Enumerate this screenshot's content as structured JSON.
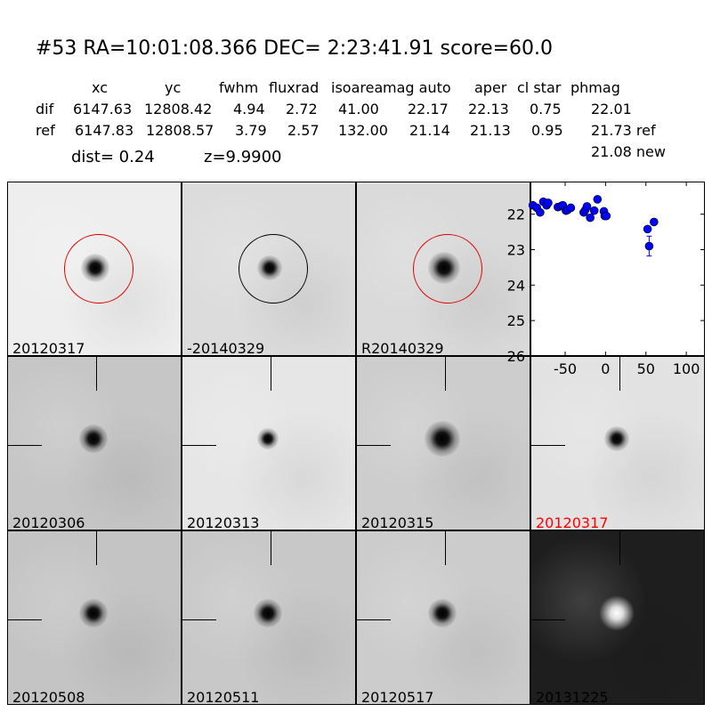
{
  "title": "#53   RA=10:01:08.366 DEC= 2:23:41.91      score=60.0",
  "columns": [
    "xc",
    "yc",
    "fwhm",
    "fluxrad",
    "isoarea",
    "mag auto",
    "aper",
    "cl star",
    "phmag"
  ],
  "rows": [
    {
      "label": "dif",
      "values": [
        "6147.63",
        "12808.42",
        "4.94",
        "2.72",
        "41.00",
        "22.17",
        "22.13",
        "0.75",
        "22.01"
      ]
    },
    {
      "label": "ref",
      "values": [
        "6147.83",
        "12808.57",
        "3.79",
        "2.57",
        "132.00",
        "21.14",
        "21.13",
        "0.95",
        "21.73 ref"
      ]
    }
  ],
  "new_mag": "21.08 new",
  "dist": "dist=  0.24",
  "z": "z=9.9900",
  "stamps": [
    {
      "label": "20120317",
      "bg": "#eeeeee",
      "circle": "red"
    },
    {
      "label": "-20140329",
      "bg": "#dcdcdc",
      "circle": "black"
    },
    {
      "label": "R20140329",
      "bg": "#dadada",
      "circle": "red"
    },
    {
      "label": "20120306",
      "bg": "#c6c6c6"
    },
    {
      "label": "20120313",
      "bg": "#e6e6e6"
    },
    {
      "label": "20120315",
      "bg": "#cdcdcd"
    },
    {
      "label": "20120317",
      "bg": "#e2e2e2",
      "label_color": "#ff0000"
    },
    {
      "label": "20120508",
      "bg": "#c4c4c4"
    },
    {
      "label": "20120511",
      "bg": "#c8c8c8"
    },
    {
      "label": "20120517",
      "bg": "#cccccc"
    },
    {
      "label": "20131225",
      "bg": "#1e1e1e",
      "inverted": true
    }
  ],
  "chart_data": {
    "type": "scatter",
    "xlim": [
      -93,
      123
    ],
    "ylim": [
      26,
      21.08
    ],
    "y_inverted": true,
    "xticks": [
      "-50",
      "0",
      "50",
      "100"
    ],
    "xtick_values": [
      -50,
      0,
      50,
      100
    ],
    "yticks": [
      "22",
      "23",
      "24",
      "25",
      "26"
    ],
    "ytick_values": [
      22,
      23,
      24,
      25,
      26
    ],
    "color": "#0000ff",
    "points": [
      [
        -90,
        21.75
      ],
      [
        -85,
        21.82
      ],
      [
        -81,
        21.95
      ],
      [
        -77,
        21.65
      ],
      [
        -73,
        21.75
      ],
      [
        -71,
        21.68
      ],
      [
        -59,
        21.8
      ],
      [
        -55,
        21.77
      ],
      [
        -53,
        21.75
      ],
      [
        -49,
        21.9
      ],
      [
        -47,
        21.88
      ],
      [
        -43,
        21.82
      ],
      [
        -27,
        21.95
      ],
      [
        -25,
        21.88
      ],
      [
        -23,
        21.78
      ],
      [
        -19,
        22.1
      ],
      [
        -14,
        21.9
      ],
      [
        -10,
        21.58
      ],
      [
        -2,
        21.92
      ],
      [
        -1,
        22.05
      ],
      [
        1,
        22.05
      ],
      [
        52,
        22.42
      ],
      [
        54,
        22.9
      ],
      [
        60,
        22.22
      ]
    ],
    "errors": [
      0.05,
      0.05,
      0.05,
      0.05,
      0.05,
      0.05,
      0.05,
      0.05,
      0.05,
      0.05,
      0.05,
      0.05,
      0.07,
      0.05,
      0.05,
      0.07,
      0.05,
      0.05,
      0.05,
      0.05,
      0.05,
      0.08,
      0.28,
      0.06
    ]
  }
}
